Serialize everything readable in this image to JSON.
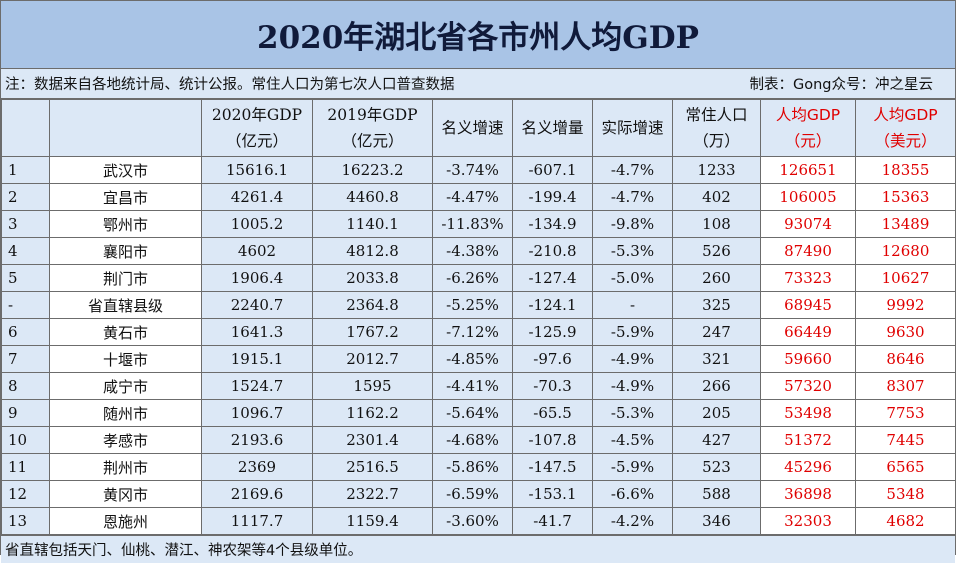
{
  "title": "2020年湖北省各市州人均GDP",
  "note": {
    "left": "注：数据来自各地统计局、统计公报。常住人口为第七次人口普查数据",
    "right": "制表：Gong众号：冲之星云"
  },
  "headers": [
    {
      "l1": "",
      "l2": ""
    },
    {
      "l1": "",
      "l2": ""
    },
    {
      "l1": "2020年GDP",
      "l2": "（亿元）"
    },
    {
      "l1": "2019年GDP",
      "l2": "（亿元）"
    },
    {
      "l1": "名义增速",
      "l2": ""
    },
    {
      "l1": "名义增量",
      "l2": ""
    },
    {
      "l1": "实际增速",
      "l2": ""
    },
    {
      "l1": "常住人口",
      "l2": "（万）"
    },
    {
      "l1": "人均GDP",
      "l2": "（元）"
    },
    {
      "l1": "人均GDP",
      "l2": "（美元）"
    }
  ],
  "rows": [
    [
      "1",
      "武汉市",
      "15616.1",
      "16223.2",
      "-3.74%",
      "-607.1",
      "-4.7%",
      "1233",
      "126651",
      "18355"
    ],
    [
      "2",
      "宜昌市",
      "4261.4",
      "4460.8",
      "-4.47%",
      "-199.4",
      "-4.7%",
      "402",
      "106005",
      "15363"
    ],
    [
      "3",
      "鄂州市",
      "1005.2",
      "1140.1",
      "-11.83%",
      "-134.9",
      "-9.8%",
      "108",
      "93074",
      "13489"
    ],
    [
      "4",
      "襄阳市",
      "4602",
      "4812.8",
      "-4.38%",
      "-210.8",
      "-5.3%",
      "526",
      "87490",
      "12680"
    ],
    [
      "5",
      "荆门市",
      "1906.4",
      "2033.8",
      "-6.26%",
      "-127.4",
      "-5.0%",
      "260",
      "73323",
      "10627"
    ],
    [
      "-",
      "省直辖县级",
      "2240.7",
      "2364.8",
      "-5.25%",
      "-124.1",
      "-",
      "325",
      "68945",
      "9992"
    ],
    [
      "6",
      "黄石市",
      "1641.3",
      "1767.2",
      "-7.12%",
      "-125.9",
      "-5.9%",
      "247",
      "66449",
      "9630"
    ],
    [
      "7",
      "十堰市",
      "1915.1",
      "2012.7",
      "-4.85%",
      "-97.6",
      "-4.9%",
      "321",
      "59660",
      "8646"
    ],
    [
      "8",
      "咸宁市",
      "1524.7",
      "1595",
      "-4.41%",
      "-70.3",
      "-4.9%",
      "266",
      "57320",
      "8307"
    ],
    [
      "9",
      "随州市",
      "1096.7",
      "1162.2",
      "-5.64%",
      "-65.5",
      "-5.3%",
      "205",
      "53498",
      "7753"
    ],
    [
      "10",
      "孝感市",
      "2193.6",
      "2301.4",
      "-4.68%",
      "-107.8",
      "-4.5%",
      "427",
      "51372",
      "7445"
    ],
    [
      "11",
      "荆州市",
      "2369",
      "2516.5",
      "-5.86%",
      "-147.5",
      "-5.9%",
      "523",
      "45296",
      "6565"
    ],
    [
      "12",
      "黄冈市",
      "2169.6",
      "2322.7",
      "-6.59%",
      "-153.1",
      "-6.6%",
      "588",
      "36898",
      "5348"
    ],
    [
      "13",
      "恩施州",
      "1117.7",
      "1159.4",
      "-3.60%",
      "-41.7",
      "-4.2%",
      "346",
      "32303",
      "4682"
    ]
  ],
  "footer": "省直辖包括天门、仙桃、潜江、神农架等4个县级单位。",
  "colors": {
    "title_bg": "#a9c4e6",
    "cell_bg": "#dce8f6",
    "highlight_text": "#e00000",
    "grid": "#6c6c6c"
  }
}
